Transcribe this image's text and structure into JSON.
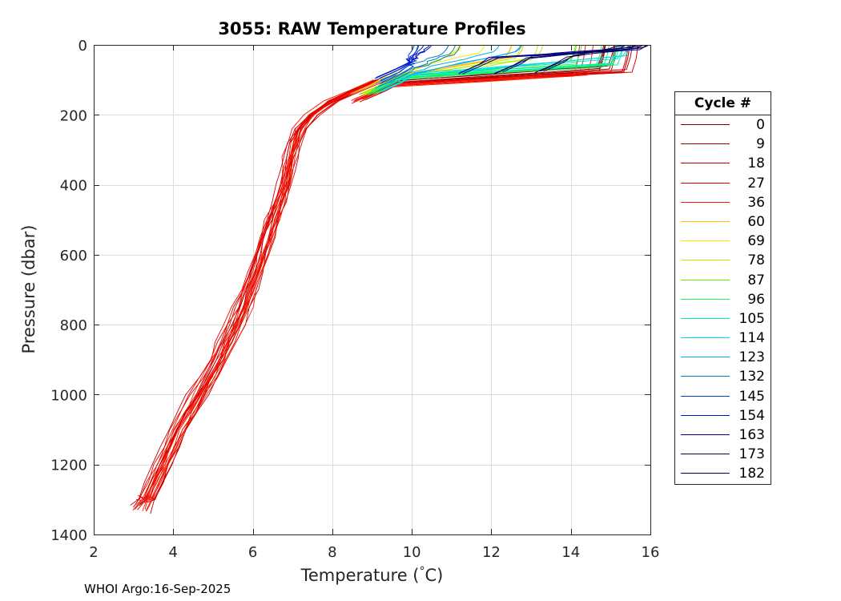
{
  "chart_data": {
    "type": "line",
    "title": "3055: RAW Temperature Profiles",
    "xlabel": "Temperature (",
    "xlabel_degree": "°",
    "xlabel_unit": "C)",
    "ylabel": "Pressure (dbar)",
    "xlim": [
      2,
      16
    ],
    "ylim": [
      0,
      1400
    ],
    "y_reversed": true,
    "x_ticks": [
      2,
      4,
      6,
      8,
      10,
      12,
      14,
      16
    ],
    "y_ticks": [
      0,
      200,
      400,
      600,
      800,
      1000,
      1200,
      1400
    ],
    "grid": true,
    "legend_position": "outside-right",
    "legend_title": "Cycle #",
    "legend": [
      {
        "label": "0",
        "color": "#800000"
      },
      {
        "label": "9",
        "color": "#a30000"
      },
      {
        "label": "18",
        "color": "#c00000"
      },
      {
        "label": "27",
        "color": "#e00000"
      },
      {
        "label": "36",
        "color": "#ff1a00"
      },
      {
        "label": "60",
        "color": "#ffc000"
      },
      {
        "label": "69",
        "color": "#f0f000"
      },
      {
        "label": "78",
        "color": "#b0f000"
      },
      {
        "label": "87",
        "color": "#60f000"
      },
      {
        "label": "96",
        "color": "#20f060"
      },
      {
        "label": "105",
        "color": "#00f0a0"
      },
      {
        "label": "114",
        "color": "#00e0e0"
      },
      {
        "label": "123",
        "color": "#00b0f0"
      },
      {
        "label": "132",
        "color": "#0080c0"
      },
      {
        "label": "145",
        "color": "#0040e0"
      },
      {
        "label": "154",
        "color": "#0010c0"
      },
      {
        "label": "163",
        "color": "#000090"
      },
      {
        "label": "173",
        "color": "#000070"
      },
      {
        "label": "182",
        "color": "#000050"
      }
    ],
    "deep_profile": {
      "pressure": [
        100,
        130,
        160,
        200,
        240,
        280,
        320,
        360,
        400,
        450,
        500,
        550,
        600,
        650,
        700,
        750,
        800,
        850,
        900,
        950,
        1000,
        1050,
        1100,
        1150,
        1200,
        1250,
        1300,
        1345
      ],
      "temperature": [
        9.2,
        8.6,
        8.0,
        7.5,
        7.2,
        7.05,
        6.95,
        6.88,
        6.8,
        6.65,
        6.5,
        6.35,
        6.2,
        6.05,
        5.9,
        5.75,
        5.55,
        5.35,
        5.15,
        4.9,
        4.65,
        4.4,
        4.15,
        3.95,
        3.75,
        3.55,
        3.35,
        3.2
      ]
    },
    "surface_profiles": [
      {
        "cycle": "0",
        "mixed_layer_temp": 14.8,
        "mixed_layer_depth": 65,
        "thermocline_base_temp": 9.6,
        "thermocline_base_depth": 100,
        "color": "#800000"
      },
      {
        "cycle": "9",
        "mixed_layer_temp": 15.0,
        "mixed_layer_depth": 70,
        "thermocline_base_temp": 9.5,
        "thermocline_base_depth": 105,
        "color": "#a30000"
      },
      {
        "cycle": "18",
        "mixed_layer_temp": 15.2,
        "mixed_layer_depth": 75,
        "thermocline_base_temp": 9.5,
        "thermocline_base_depth": 110,
        "color": "#c00000"
      },
      {
        "cycle": "27",
        "mixed_layer_temp": 15.5,
        "mixed_layer_depth": 80,
        "thermocline_base_temp": 9.4,
        "thermocline_base_depth": 115,
        "color": "#e00000"
      },
      {
        "cycle": "36",
        "mixed_layer_temp": 14.5,
        "mixed_layer_depth": 85,
        "thermocline_base_temp": 9.4,
        "thermocline_base_depth": 118,
        "color": "#ff1a00"
      },
      {
        "cycle": "60",
        "mixed_layer_temp": 12.8,
        "mixed_layer_depth": 35,
        "thermocline_base_temp": 9.4,
        "thermocline_base_depth": 95,
        "color": "#ffc000"
      },
      {
        "cycle": "69",
        "mixed_layer_temp": 11.5,
        "mixed_layer_depth": 25,
        "thermocline_base_temp": 9.5,
        "thermocline_base_depth": 90,
        "color": "#f0f000"
      },
      {
        "cycle": "78",
        "mixed_layer_temp": 13.0,
        "mixed_layer_depth": 40,
        "thermocline_base_temp": 9.6,
        "thermocline_base_depth": 95,
        "color": "#b0f000"
      },
      {
        "cycle": "87",
        "mixed_layer_temp": 14.0,
        "mixed_layer_depth": 50,
        "thermocline_base_temp": 9.7,
        "thermocline_base_depth": 95,
        "color": "#60f000"
      },
      {
        "cycle": "96",
        "mixed_layer_temp": 14.8,
        "mixed_layer_depth": 60,
        "thermocline_base_temp": 9.8,
        "thermocline_base_depth": 95,
        "color": "#20f060"
      },
      {
        "cycle": "105",
        "mixed_layer_temp": 15.0,
        "mixed_layer_depth": 55,
        "thermocline_base_temp": 9.9,
        "thermocline_base_depth": 90,
        "color": "#00f0a0"
      },
      {
        "cycle": "114",
        "mixed_layer_temp": 15.3,
        "mixed_layer_depth": 35,
        "thermocline_base_temp": 10.0,
        "thermocline_base_depth": 85,
        "color": "#00e0e0"
      },
      {
        "cycle": "123",
        "mixed_layer_temp": 12.5,
        "mixed_layer_depth": 20,
        "thermocline_base_temp": 10.0,
        "thermocline_base_depth": 80,
        "color": "#00b0f0"
      },
      {
        "cycle": "132",
        "mixed_layer_temp": 11.0,
        "mixed_layer_depth": 25,
        "thermocline_base_temp": 9.9,
        "thermocline_base_depth": 70,
        "color": "#0080c0"
      },
      {
        "cycle": "145",
        "mixed_layer_temp": 9.8,
        "mixed_layer_depth": 30,
        "thermocline_base_temp": 9.9,
        "thermocline_base_depth": 60,
        "color": "#0040e0"
      },
      {
        "cycle": "154",
        "mixed_layer_temp": 10.5,
        "mixed_layer_depth": 15,
        "thermocline_base_temp": 9.9,
        "thermocline_base_depth": 50,
        "color": "#0010c0"
      },
      {
        "cycle": "163",
        "mixed_layer_temp": 15.6,
        "mixed_layer_depth": 10,
        "thermocline_base_temp": 12.0,
        "thermocline_base_depth": 40,
        "color": "#000090"
      },
      {
        "cycle": "173",
        "mixed_layer_temp": 15.7,
        "mixed_layer_depth": 5,
        "thermocline_base_temp": 13.0,
        "thermocline_base_depth": 35,
        "color": "#000070"
      },
      {
        "cycle": "182",
        "mixed_layer_temp": 15.8,
        "mixed_layer_depth": 5,
        "thermocline_base_temp": 14.0,
        "thermocline_base_depth": 30,
        "color": "#000050"
      }
    ]
  },
  "credit": "WHOI Argo:16-Sep-2025"
}
